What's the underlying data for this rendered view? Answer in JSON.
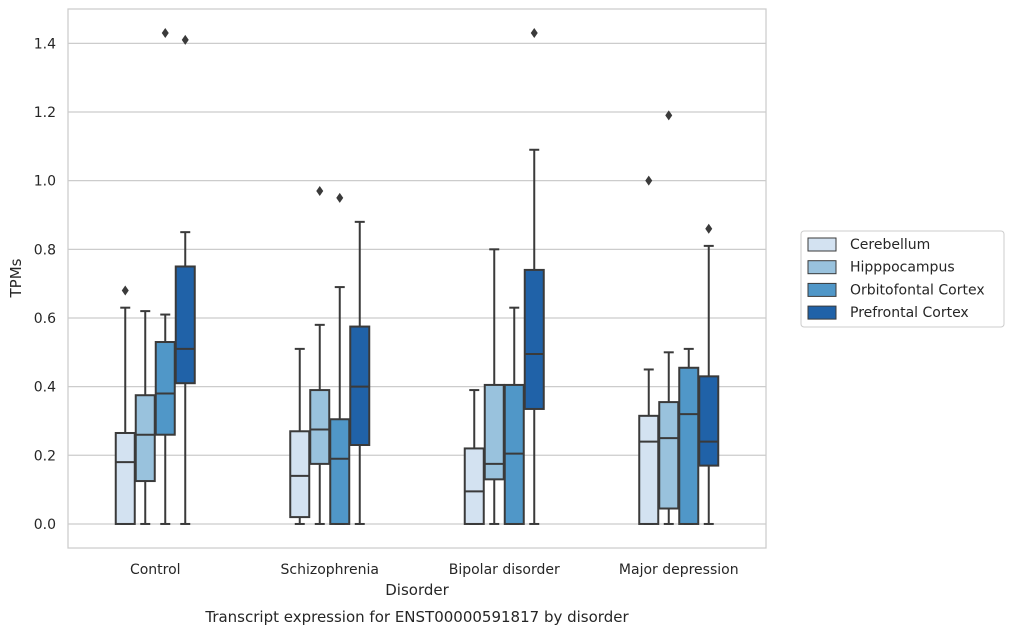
{
  "chart_data": {
    "type": "boxplot",
    "caption": "Transcript expression for ENST00000591817 by disorder",
    "xlabel": "Disorder",
    "ylabel": "TPMs",
    "ylim": [
      -0.07,
      1.5
    ],
    "yticks": [
      "0.0",
      "0.2",
      "0.4",
      "0.6",
      "0.8",
      "1.0",
      "1.2",
      "1.4"
    ],
    "grid": "horizontal",
    "legend_position": "right",
    "categories": [
      "Control",
      "Schizophrenia",
      "Bipolar disorder",
      "Major depression"
    ],
    "series": [
      {
        "name": "Cerebellum",
        "color": "#d3e2f1",
        "boxes": [
          {
            "whislo": 0.0,
            "q1": 0.0,
            "med": 0.18,
            "q3": 0.265,
            "whishi": 0.63,
            "fliers": [
              0.68
            ]
          },
          {
            "whislo": 0.0,
            "q1": 0.02,
            "med": 0.14,
            "q3": 0.27,
            "whishi": 0.51,
            "fliers": []
          },
          {
            "whislo": 0.0,
            "q1": 0.0,
            "med": 0.095,
            "q3": 0.22,
            "whishi": 0.39,
            "fliers": []
          },
          {
            "whislo": 0.0,
            "q1": 0.0,
            "med": 0.24,
            "q3": 0.315,
            "whishi": 0.45,
            "fliers": [
              1.0
            ]
          }
        ]
      },
      {
        "name": "Hipppocampus",
        "color": "#99c2dd",
        "boxes": [
          {
            "whislo": 0.0,
            "q1": 0.125,
            "med": 0.26,
            "q3": 0.375,
            "whishi": 0.62,
            "fliers": []
          },
          {
            "whislo": 0.0,
            "q1": 0.175,
            "med": 0.275,
            "q3": 0.39,
            "whishi": 0.58,
            "fliers": [
              0.97
            ]
          },
          {
            "whislo": 0.0,
            "q1": 0.13,
            "med": 0.175,
            "q3": 0.405,
            "whishi": 0.8,
            "fliers": []
          },
          {
            "whislo": 0.0,
            "q1": 0.045,
            "med": 0.25,
            "q3": 0.355,
            "whishi": 0.5,
            "fliers": [
              1.19
            ]
          }
        ]
      },
      {
        "name": "Orbitofontal Cortex",
        "color": "#5097c8",
        "boxes": [
          {
            "whislo": 0.0,
            "q1": 0.26,
            "med": 0.38,
            "q3": 0.53,
            "whishi": 0.61,
            "fliers": [
              1.43
            ]
          },
          {
            "whislo": 0.0,
            "q1": 0.0,
            "med": 0.19,
            "q3": 0.305,
            "whishi": 0.69,
            "fliers": [
              0.95
            ]
          },
          {
            "whislo": 0.0,
            "q1": 0.0,
            "med": 0.205,
            "q3": 0.405,
            "whishi": 0.63,
            "fliers": []
          },
          {
            "whislo": 0.0,
            "q1": 0.0,
            "med": 0.32,
            "q3": 0.455,
            "whishi": 0.51,
            "fliers": []
          }
        ]
      },
      {
        "name": "Prefrontal Cortex",
        "color": "#2062a8",
        "boxes": [
          {
            "whislo": 0.0,
            "q1": 0.41,
            "med": 0.51,
            "q3": 0.75,
            "whishi": 0.85,
            "fliers": [
              1.41
            ]
          },
          {
            "whislo": 0.0,
            "q1": 0.23,
            "med": 0.4,
            "q3": 0.575,
            "whishi": 0.88,
            "fliers": []
          },
          {
            "whislo": 0.0,
            "q1": 0.335,
            "med": 0.495,
            "q3": 0.74,
            "whishi": 1.09,
            "fliers": [
              1.43
            ]
          },
          {
            "whislo": 0.0,
            "q1": 0.17,
            "med": 0.24,
            "q3": 0.43,
            "whishi": 0.81,
            "fliers": [
              0.86
            ]
          }
        ]
      }
    ]
  }
}
